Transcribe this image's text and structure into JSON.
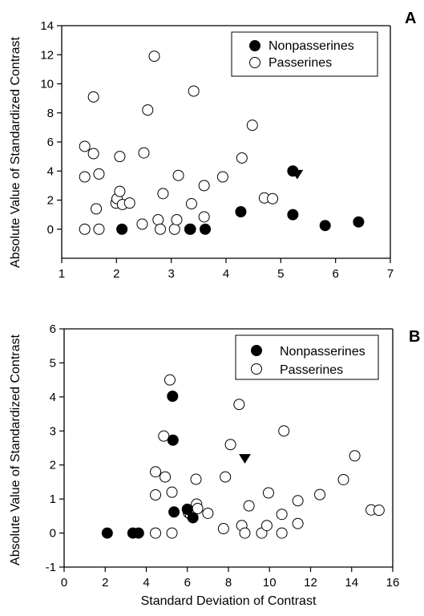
{
  "figure": {
    "x_axis_title": "Standard Deviation of Contrast"
  },
  "chart_data": [
    {
      "type": "scatter",
      "panel_label": "A",
      "ylabel": "Absolute Value of Standardized Contrast",
      "xlabel": "",
      "xlim": [
        1,
        7
      ],
      "ylim": [
        -2,
        14
      ],
      "x_ticks": [
        "1",
        "2",
        "3",
        "4",
        "5",
        "6",
        "7"
      ],
      "y_ticks": [
        "0",
        "2",
        "4",
        "6",
        "8",
        "10",
        "12",
        "14"
      ],
      "grid": false,
      "legend_position": "top-right",
      "series": [
        {
          "name": "Nonpasserines",
          "marker": "filled-circle",
          "points": [
            {
              "x": 2.1,
              "y": 0.0
            },
            {
              "x": 3.35,
              "y": 0.0
            },
            {
              "x": 3.62,
              "y": 0.0
            },
            {
              "x": 4.27,
              "y": 1.2
            },
            {
              "x": 5.22,
              "y": 1.0
            },
            {
              "x": 5.22,
              "y": 4.0
            },
            {
              "x": 5.81,
              "y": 0.25
            },
            {
              "x": 6.42,
              "y": 0.5
            }
          ]
        },
        {
          "name": "Passerines",
          "marker": "open-circle",
          "points": [
            {
              "x": 1.42,
              "y": 5.7
            },
            {
              "x": 1.42,
              "y": 3.6
            },
            {
              "x": 1.42,
              "y": 0.0
            },
            {
              "x": 1.58,
              "y": 9.1
            },
            {
              "x": 1.58,
              "y": 5.2
            },
            {
              "x": 1.63,
              "y": 1.4
            },
            {
              "x": 1.68,
              "y": 3.8
            },
            {
              "x": 1.68,
              "y": 0.0
            },
            {
              "x": 1.99,
              "y": 1.8
            },
            {
              "x": 2.01,
              "y": 2.1
            },
            {
              "x": 2.06,
              "y": 5.0
            },
            {
              "x": 2.06,
              "y": 2.6
            },
            {
              "x": 2.11,
              "y": 1.7
            },
            {
              "x": 2.24,
              "y": 1.8
            },
            {
              "x": 2.47,
              "y": 0.35
            },
            {
              "x": 2.5,
              "y": 5.25
            },
            {
              "x": 2.57,
              "y": 8.2
            },
            {
              "x": 2.69,
              "y": 11.9
            },
            {
              "x": 2.76,
              "y": 0.65
            },
            {
              "x": 2.8,
              "y": 0.0
            },
            {
              "x": 2.85,
              "y": 2.45
            },
            {
              "x": 3.06,
              "y": 0.0
            },
            {
              "x": 3.1,
              "y": 0.65
            },
            {
              "x": 3.13,
              "y": 3.7
            },
            {
              "x": 3.34,
              "y": 0.0
            },
            {
              "x": 3.37,
              "y": 1.75
            },
            {
              "x": 3.41,
              "y": 9.5
            },
            {
              "x": 3.6,
              "y": 3.0
            },
            {
              "x": 3.6,
              "y": 0.85
            },
            {
              "x": 3.94,
              "y": 3.6
            },
            {
              "x": 4.29,
              "y": 4.9
            },
            {
              "x": 4.48,
              "y": 7.15
            },
            {
              "x": 4.7,
              "y": 2.15
            },
            {
              "x": 4.85,
              "y": 2.1
            }
          ]
        },
        {
          "name": "",
          "marker": "filled-triangle-down",
          "points": [
            {
              "x": 5.3,
              "y": 3.8
            }
          ]
        }
      ]
    },
    {
      "type": "scatter",
      "panel_label": "B",
      "ylabel": "Absolute Value of Standardized Contrast",
      "xlabel": "Standard Deviation of Contrast",
      "xlim": [
        0,
        16
      ],
      "ylim": [
        -1,
        6
      ],
      "x_ticks": [
        "0",
        "2",
        "4",
        "6",
        "8",
        "10",
        "12",
        "14",
        "16"
      ],
      "y_ticks": [
        "-1",
        "0",
        "1",
        "2",
        "3",
        "4",
        "5",
        "6"
      ],
      "grid": false,
      "legend_position": "top-right",
      "series": [
        {
          "name": "Nonpasserines",
          "marker": "filled-circle",
          "points": [
            {
              "x": 2.1,
              "y": 0.0
            },
            {
              "x": 3.35,
              "y": 0.0
            },
            {
              "x": 3.62,
              "y": 0.0
            },
            {
              "x": 5.28,
              "y": 4.02
            },
            {
              "x": 5.3,
              "y": 2.73
            },
            {
              "x": 5.35,
              "y": 0.62
            },
            {
              "x": 6.0,
              "y": 0.7
            },
            {
              "x": 6.27,
              "y": 0.45
            }
          ]
        },
        {
          "name": "Passerines",
          "marker": "open-circle",
          "points": [
            {
              "x": 4.45,
              "y": 1.8
            },
            {
              "x": 4.45,
              "y": 1.12
            },
            {
              "x": 4.45,
              "y": 0.0
            },
            {
              "x": 4.85,
              "y": 2.85
            },
            {
              "x": 4.92,
              "y": 1.65
            },
            {
              "x": 5.15,
              "y": 4.5
            },
            {
              "x": 5.25,
              "y": 1.2
            },
            {
              "x": 5.25,
              "y": 0.0
            },
            {
              "x": 6.05,
              "y": 0.6
            },
            {
              "x": 6.15,
              "y": 0.55
            },
            {
              "x": 6.2,
              "y": 0.65
            },
            {
              "x": 6.42,
              "y": 1.58
            },
            {
              "x": 6.45,
              "y": 0.85
            },
            {
              "x": 6.5,
              "y": 0.72
            },
            {
              "x": 7.0,
              "y": 0.58
            },
            {
              "x": 7.76,
              "y": 0.13
            },
            {
              "x": 7.85,
              "y": 1.65
            },
            {
              "x": 8.1,
              "y": 2.6
            },
            {
              "x": 8.52,
              "y": 3.78
            },
            {
              "x": 8.65,
              "y": 0.22
            },
            {
              "x": 8.8,
              "y": 0.0
            },
            {
              "x": 9.0,
              "y": 0.8
            },
            {
              "x": 9.62,
              "y": 0.0
            },
            {
              "x": 9.87,
              "y": 0.22
            },
            {
              "x": 9.95,
              "y": 1.18
            },
            {
              "x": 10.6,
              "y": 0.55
            },
            {
              "x": 10.6,
              "y": 0.0
            },
            {
              "x": 10.7,
              "y": 3.0
            },
            {
              "x": 11.38,
              "y": 0.95
            },
            {
              "x": 11.38,
              "y": 0.28
            },
            {
              "x": 12.45,
              "y": 1.13
            },
            {
              "x": 13.6,
              "y": 1.57
            },
            {
              "x": 14.15,
              "y": 2.27
            },
            {
              "x": 14.95,
              "y": 0.68
            },
            {
              "x": 15.33,
              "y": 0.67
            }
          ]
        },
        {
          "name": "",
          "marker": "filled-triangle-down",
          "points": [
            {
              "x": 8.8,
              "y": 2.2
            }
          ]
        }
      ]
    }
  ]
}
